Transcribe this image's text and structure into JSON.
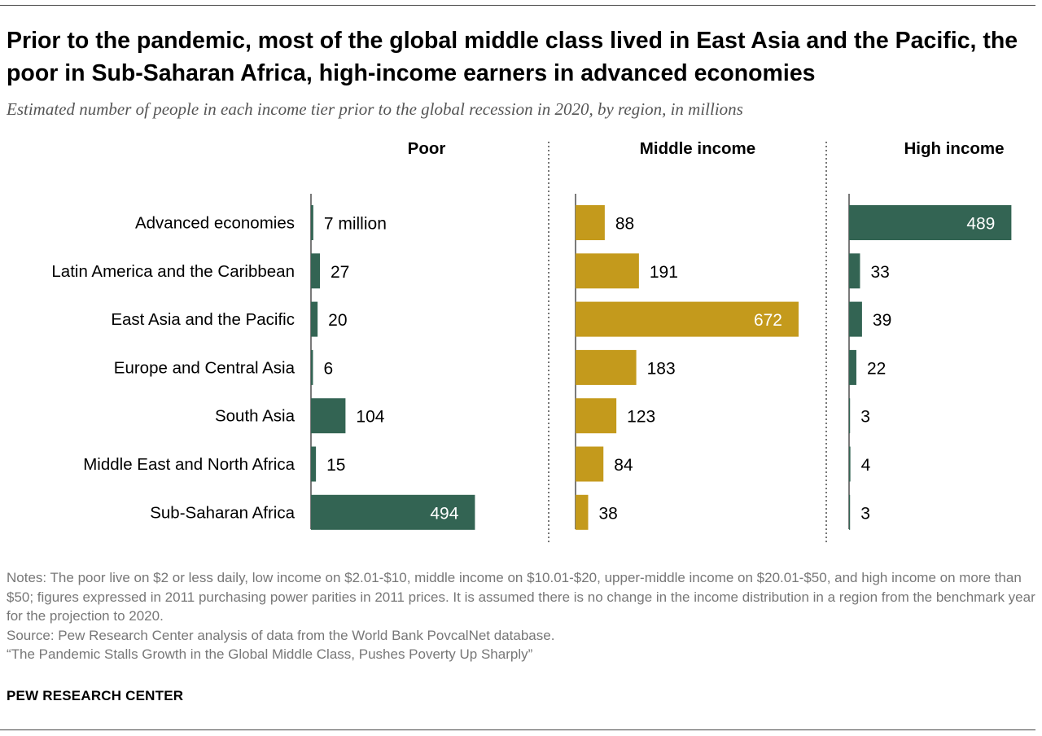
{
  "title": "Prior to the pandemic, most of the global middle class lived in East Asia and the Pacific, the poor in Sub-Saharan Africa, high-income earners in advanced economies",
  "subtitle": "Estimated number of people in each income tier prior to the global recession in 2020, by region, in millions",
  "colors": {
    "poor": "#336453",
    "middle": "#c49a1c",
    "high": "#336453",
    "inside_label": "#ffffff",
    "outside_label": "#000000",
    "divider": "#555555",
    "axis": "#333333"
  },
  "chart_data": {
    "type": "bar",
    "orientation": "horizontal",
    "categories": [
      "Advanced economies",
      "Latin America and the Caribbean",
      "East Asia and the Pacific",
      "Europe and Central Asia",
      "South Asia",
      "Middle East and North Africa",
      "Sub-Saharan Africa"
    ],
    "series": [
      {
        "name": "Poor",
        "values": [
          7,
          27,
          20,
          6,
          104,
          15,
          494
        ],
        "labels": [
          "7 million",
          "27",
          "20",
          "6",
          "104",
          "15",
          "494"
        ]
      },
      {
        "name": "Middle income",
        "values": [
          88,
          191,
          672,
          183,
          123,
          84,
          38
        ],
        "labels": [
          "88",
          "191",
          "672",
          "183",
          "123",
          "84",
          "38"
        ]
      },
      {
        "name": "High income",
        "values": [
          489,
          33,
          39,
          22,
          3,
          4,
          3
        ],
        "labels": [
          "489",
          "33",
          "39",
          "22",
          "3",
          "4",
          "3"
        ]
      }
    ],
    "xlim": [
      0,
      672
    ],
    "grid": false,
    "legend": "none"
  },
  "notes": [
    "Notes: The poor live on $2 or less daily, low income on $2.01-$10, middle income on $10.01-$20, upper-middle income on $20.01-$50, and high income on more than $50; figures expressed in 2011 purchasing power parities in 2011 prices. It is assumed there is no change in the income distribution in a region from the benchmark year for the projection to 2020.",
    "Source: Pew Research Center analysis of data from the World Bank PovcalNet database.",
    "“The Pandemic Stalls Growth in the Global Middle Class, Pushes Poverty Up Sharply”"
  ],
  "brand": "PEW RESEARCH CENTER"
}
